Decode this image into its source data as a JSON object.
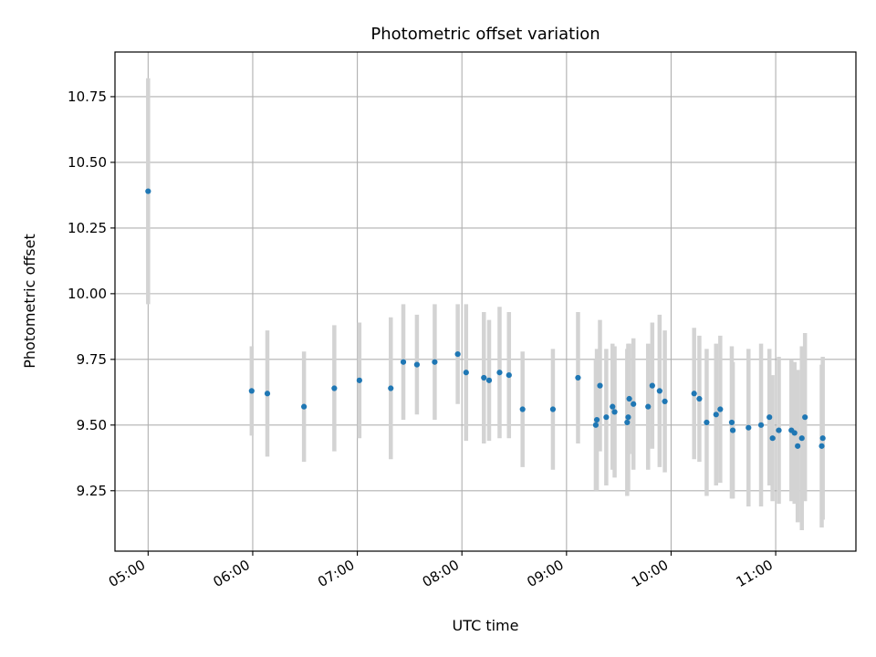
{
  "chart_data": {
    "type": "scatter",
    "title": "Photometric offset variation",
    "xlabel": "UTC time",
    "ylabel": "Photometric offset",
    "x_unit": "hours",
    "xlim": [
      4.683,
      11.767
    ],
    "ylim": [
      9.02,
      10.92
    ],
    "grid": true,
    "xticks": [
      {
        "value": 5,
        "label": "05:00"
      },
      {
        "value": 6,
        "label": "06:00"
      },
      {
        "value": 7,
        "label": "07:00"
      },
      {
        "value": 8,
        "label": "08:00"
      },
      {
        "value": 9,
        "label": "09:00"
      },
      {
        "value": 10,
        "label": "10:00"
      },
      {
        "value": 11,
        "label": "11:00"
      }
    ],
    "yticks": [
      {
        "value": 9.25,
        "label": "9.25"
      },
      {
        "value": 9.5,
        "label": "9.50"
      },
      {
        "value": 9.75,
        "label": "9.75"
      },
      {
        "value": 10.0,
        "label": "10.00"
      },
      {
        "value": 10.25,
        "label": "10.25"
      },
      {
        "value": 10.5,
        "label": "10.50"
      },
      {
        "value": 10.75,
        "label": "10.75"
      }
    ],
    "colors": {
      "point": "#1f77b4",
      "errorbar": "#d3d3d3",
      "grid": "#b0b0b0",
      "axis": "#000000"
    },
    "series": [
      {
        "name": "offset",
        "x": [
          5.0,
          5.99,
          6.14,
          6.49,
          6.78,
          7.02,
          7.32,
          7.44,
          7.57,
          7.74,
          7.96,
          8.04,
          8.21,
          8.26,
          8.36,
          8.45,
          8.58,
          8.87,
          9.11,
          9.28,
          9.29,
          9.32,
          9.38,
          9.44,
          9.46,
          9.58,
          9.59,
          9.6,
          9.64,
          9.78,
          9.82,
          9.89,
          9.94,
          10.22,
          10.27,
          10.34,
          10.43,
          10.47,
          10.58,
          10.59,
          10.74,
          10.86,
          10.94,
          10.97,
          11.03,
          11.15,
          11.18,
          11.21,
          11.25,
          11.28,
          11.44,
          11.45
        ],
        "y": [
          10.39,
          9.63,
          9.62,
          9.57,
          9.64,
          9.67,
          9.64,
          9.74,
          9.73,
          9.74,
          9.77,
          9.7,
          9.68,
          9.67,
          9.7,
          9.69,
          9.56,
          9.56,
          9.68,
          9.5,
          9.52,
          9.65,
          9.53,
          9.57,
          9.55,
          9.51,
          9.53,
          9.6,
          9.58,
          9.57,
          9.65,
          9.63,
          9.59,
          9.62,
          9.6,
          9.51,
          9.54,
          9.56,
          9.51,
          9.48,
          9.49,
          9.5,
          9.53,
          9.45,
          9.48,
          9.48,
          9.47,
          9.42,
          9.45,
          9.53,
          9.42,
          9.45
        ],
        "err": [
          0.43,
          0.17,
          0.24,
          0.21,
          0.24,
          0.22,
          0.27,
          0.22,
          0.19,
          0.22,
          0.19,
          0.26,
          0.25,
          0.23,
          0.25,
          0.24,
          0.22,
          0.23,
          0.25,
          0.25,
          0.27,
          0.25,
          0.26,
          0.24,
          0.25,
          0.28,
          0.28,
          0.21,
          0.25,
          0.24,
          0.24,
          0.29,
          0.27,
          0.25,
          0.24,
          0.28,
          0.27,
          0.28,
          0.29,
          0.26,
          0.3,
          0.31,
          0.26,
          0.24,
          0.28,
          0.27,
          0.27,
          0.29,
          0.35,
          0.32,
          0.31,
          0.31
        ]
      }
    ]
  }
}
